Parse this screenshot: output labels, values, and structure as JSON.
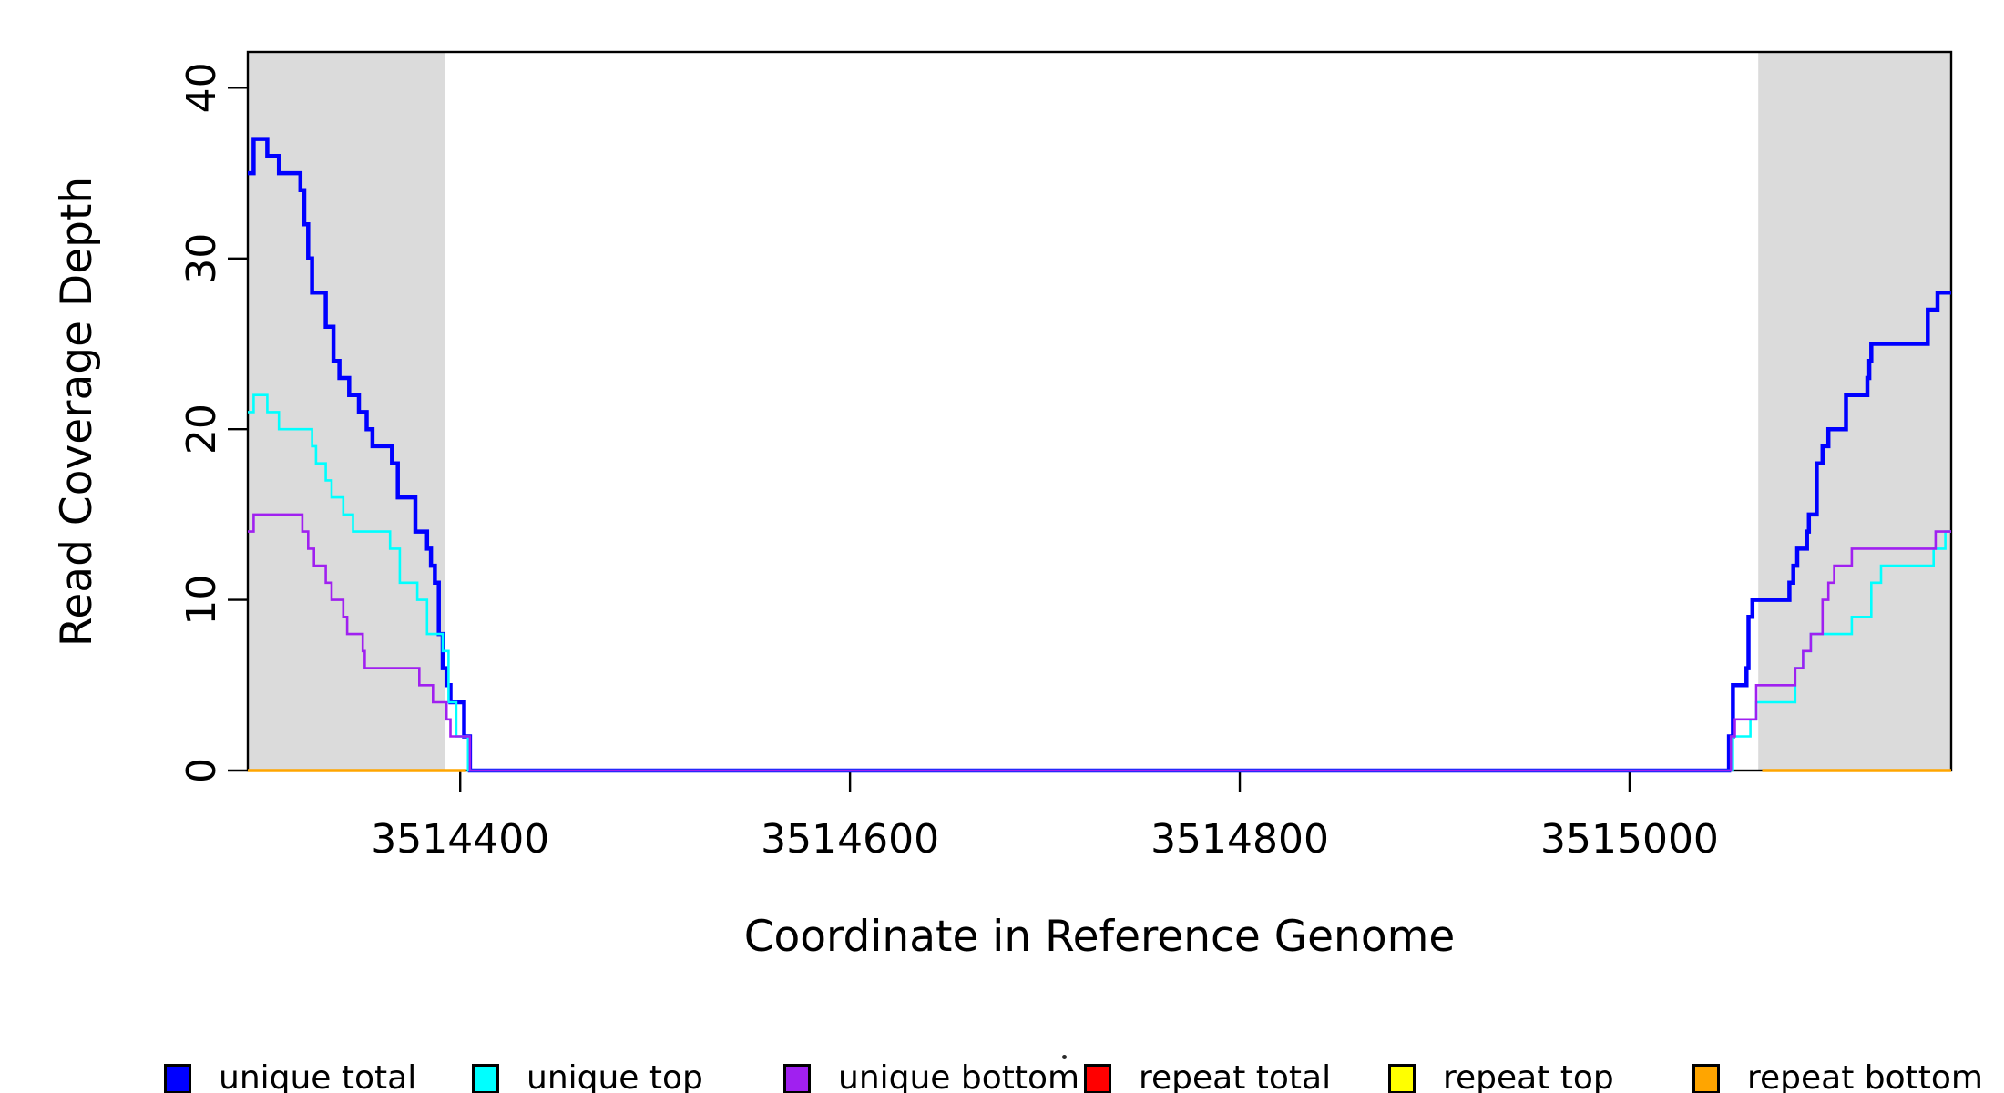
{
  "figure": {
    "background": "#FFFFFF",
    "axis_color": "#000000"
  },
  "chart_data": {
    "type": "line",
    "subtype": "step-after-coverage",
    "title": "",
    "xlabel": "Coordinate in Reference Genome",
    "ylabel": "Read Coverage Depth",
    "xlim": [
      3514291,
      3515165
    ],
    "ylim": [
      0,
      42.1
    ],
    "grid": false,
    "x_ticks": [
      {
        "value": 3514400,
        "label": "3514400"
      },
      {
        "value": 3514600,
        "label": "3514600"
      },
      {
        "value": 3514800,
        "label": "3514800"
      },
      {
        "value": 3515000,
        "label": "3515000"
      }
    ],
    "y_ticks": [
      {
        "value": 0,
        "label": "0"
      },
      {
        "value": 10,
        "label": "10"
      },
      {
        "value": 20,
        "label": "20"
      },
      {
        "value": 30,
        "label": "30"
      },
      {
        "value": 40,
        "label": "40"
      }
    ],
    "region_fill": "#DBDBDB",
    "repeat_regions": [
      [
        3514291,
        3514392
      ],
      [
        3515066,
        3515165
      ]
    ],
    "series": [
      {
        "name": "unique total",
        "color": "#0000FF",
        "line_width": 4.5,
        "segments": [
          [
            [
              3514291,
              35
            ],
            [
              3514294,
              37
            ],
            [
              3514301,
              36
            ],
            [
              3514307,
              35
            ],
            [
              3514318,
              34
            ],
            [
              3514320,
              32
            ],
            [
              3514322,
              30
            ],
            [
              3514324,
              28
            ],
            [
              3514331,
              26
            ],
            [
              3514335,
              24
            ],
            [
              3514338,
              23
            ],
            [
              3514343,
              22
            ],
            [
              3514348,
              21
            ],
            [
              3514352,
              20
            ],
            [
              3514355,
              19
            ],
            [
              3514365,
              18
            ],
            [
              3514368,
              16
            ],
            [
              3514377,
              14
            ],
            [
              3514383,
              13
            ],
            [
              3514385,
              12
            ],
            [
              3514387,
              11
            ],
            [
              3514389,
              8
            ],
            [
              3514391,
              6
            ],
            [
              3514393,
              5
            ],
            [
              3514395,
              4
            ],
            [
              3514402,
              2
            ],
            [
              3514405,
              0
            ],
            [
              3515051,
              2
            ],
            [
              3515053,
              5
            ],
            [
              3515060,
              6
            ],
            [
              3515061,
              9
            ],
            [
              3515063,
              10
            ],
            [
              3515082,
              11
            ],
            [
              3515084,
              12
            ],
            [
              3515086,
              13
            ],
            [
              3515091,
              14
            ],
            [
              3515092,
              15
            ],
            [
              3515096,
              18
            ],
            [
              3515099,
              19
            ],
            [
              3515102,
              20
            ],
            [
              3515111,
              22
            ],
            [
              3515122,
              23
            ],
            [
              3515123,
              24
            ],
            [
              3515124,
              25
            ],
            [
              3515153,
              27
            ],
            [
              3515158,
              28
            ],
            [
              3515165,
              28
            ]
          ]
        ]
      },
      {
        "name": "unique top",
        "color": "#00FFFF",
        "line_width": 2.6,
        "segments": [
          [
            [
              3514291,
              21
            ],
            [
              3514294,
              22
            ],
            [
              3514301,
              21
            ],
            [
              3514307,
              20
            ],
            [
              3514324,
              19
            ],
            [
              3514326,
              18
            ],
            [
              3514331,
              17
            ],
            [
              3514334,
              16
            ],
            [
              3514340,
              15
            ],
            [
              3514345,
              14
            ],
            [
              3514364,
              13
            ],
            [
              3514369,
              11
            ],
            [
              3514378,
              10
            ],
            [
              3514383,
              8
            ],
            [
              3514391,
              7
            ],
            [
              3514394,
              4
            ],
            [
              3514398,
              2
            ],
            [
              3514404,
              0
            ],
            [
              3515053,
              2
            ],
            [
              3515062,
              3
            ],
            [
              3515065,
              4
            ],
            [
              3515085,
              6
            ],
            [
              3515089,
              7
            ],
            [
              3515093,
              8
            ],
            [
              3515114,
              9
            ],
            [
              3515124,
              11
            ],
            [
              3515129,
              12
            ],
            [
              3515156,
              13
            ],
            [
              3515162,
              14
            ],
            [
              3515165,
              14
            ]
          ]
        ]
      },
      {
        "name": "unique bottom",
        "color": "#A020F0",
        "line_width": 2.6,
        "segments": [
          [
            [
              3514291,
              14
            ],
            [
              3514294,
              15
            ],
            [
              3514319,
              14
            ],
            [
              3514322,
              13
            ],
            [
              3514325,
              12
            ],
            [
              3514331,
              11
            ],
            [
              3514334,
              10
            ],
            [
              3514340,
              9
            ],
            [
              3514342,
              8
            ],
            [
              3514350,
              7
            ],
            [
              3514351,
              6
            ],
            [
              3514379,
              5
            ],
            [
              3514386,
              4
            ],
            [
              3514393,
              3
            ],
            [
              3514395,
              2
            ],
            [
              3514405,
              0
            ],
            [
              3515052,
              2
            ],
            [
              3515054,
              3
            ],
            [
              3515065,
              5
            ],
            [
              3515085,
              6
            ],
            [
              3515089,
              7
            ],
            [
              3515093,
              8
            ],
            [
              3515099,
              10
            ],
            [
              3515102,
              11
            ],
            [
              3515105,
              12
            ],
            [
              3515114,
              13
            ],
            [
              3515157,
              14
            ],
            [
              3515165,
              14
            ]
          ]
        ]
      },
      {
        "name": "repeat total",
        "color": "#FF0000",
        "line_width": 2.6,
        "segments": [
          [
            [
              3514291,
              0
            ],
            [
              3514403,
              0
            ]
          ],
          [
            [
              3515068,
              0
            ],
            [
              3515165,
              0
            ]
          ]
        ]
      },
      {
        "name": "repeat top",
        "color": "#FFFF00",
        "line_width": 2.6,
        "segments": [
          [
            [
              3514291,
              0
            ],
            [
              3514403,
              0
            ]
          ],
          [
            [
              3515068,
              0
            ],
            [
              3515165,
              0
            ]
          ]
        ]
      },
      {
        "name": "repeat bottom",
        "color": "#FFA500",
        "line_width": 3.5,
        "segments": [
          [
            [
              3514291,
              0
            ],
            [
              3514403,
              0
            ]
          ],
          [
            [
              3515068,
              0
            ],
            [
              3515165,
              0
            ]
          ]
        ]
      }
    ],
    "legend": {
      "position": "bottom",
      "entries": [
        {
          "label": "unique total",
          "color": "#0000FF"
        },
        {
          "label": "unique top",
          "color": "#00FFFF"
        },
        {
          "label": "unique bottom",
          "color": "#A020F0"
        },
        {
          "label": "repeat total",
          "color": "#FF0000"
        },
        {
          "label": "repeat top",
          "color": "#FFFF00"
        },
        {
          "label": "repeat bottom",
          "color": "#FFA500"
        }
      ]
    }
  }
}
